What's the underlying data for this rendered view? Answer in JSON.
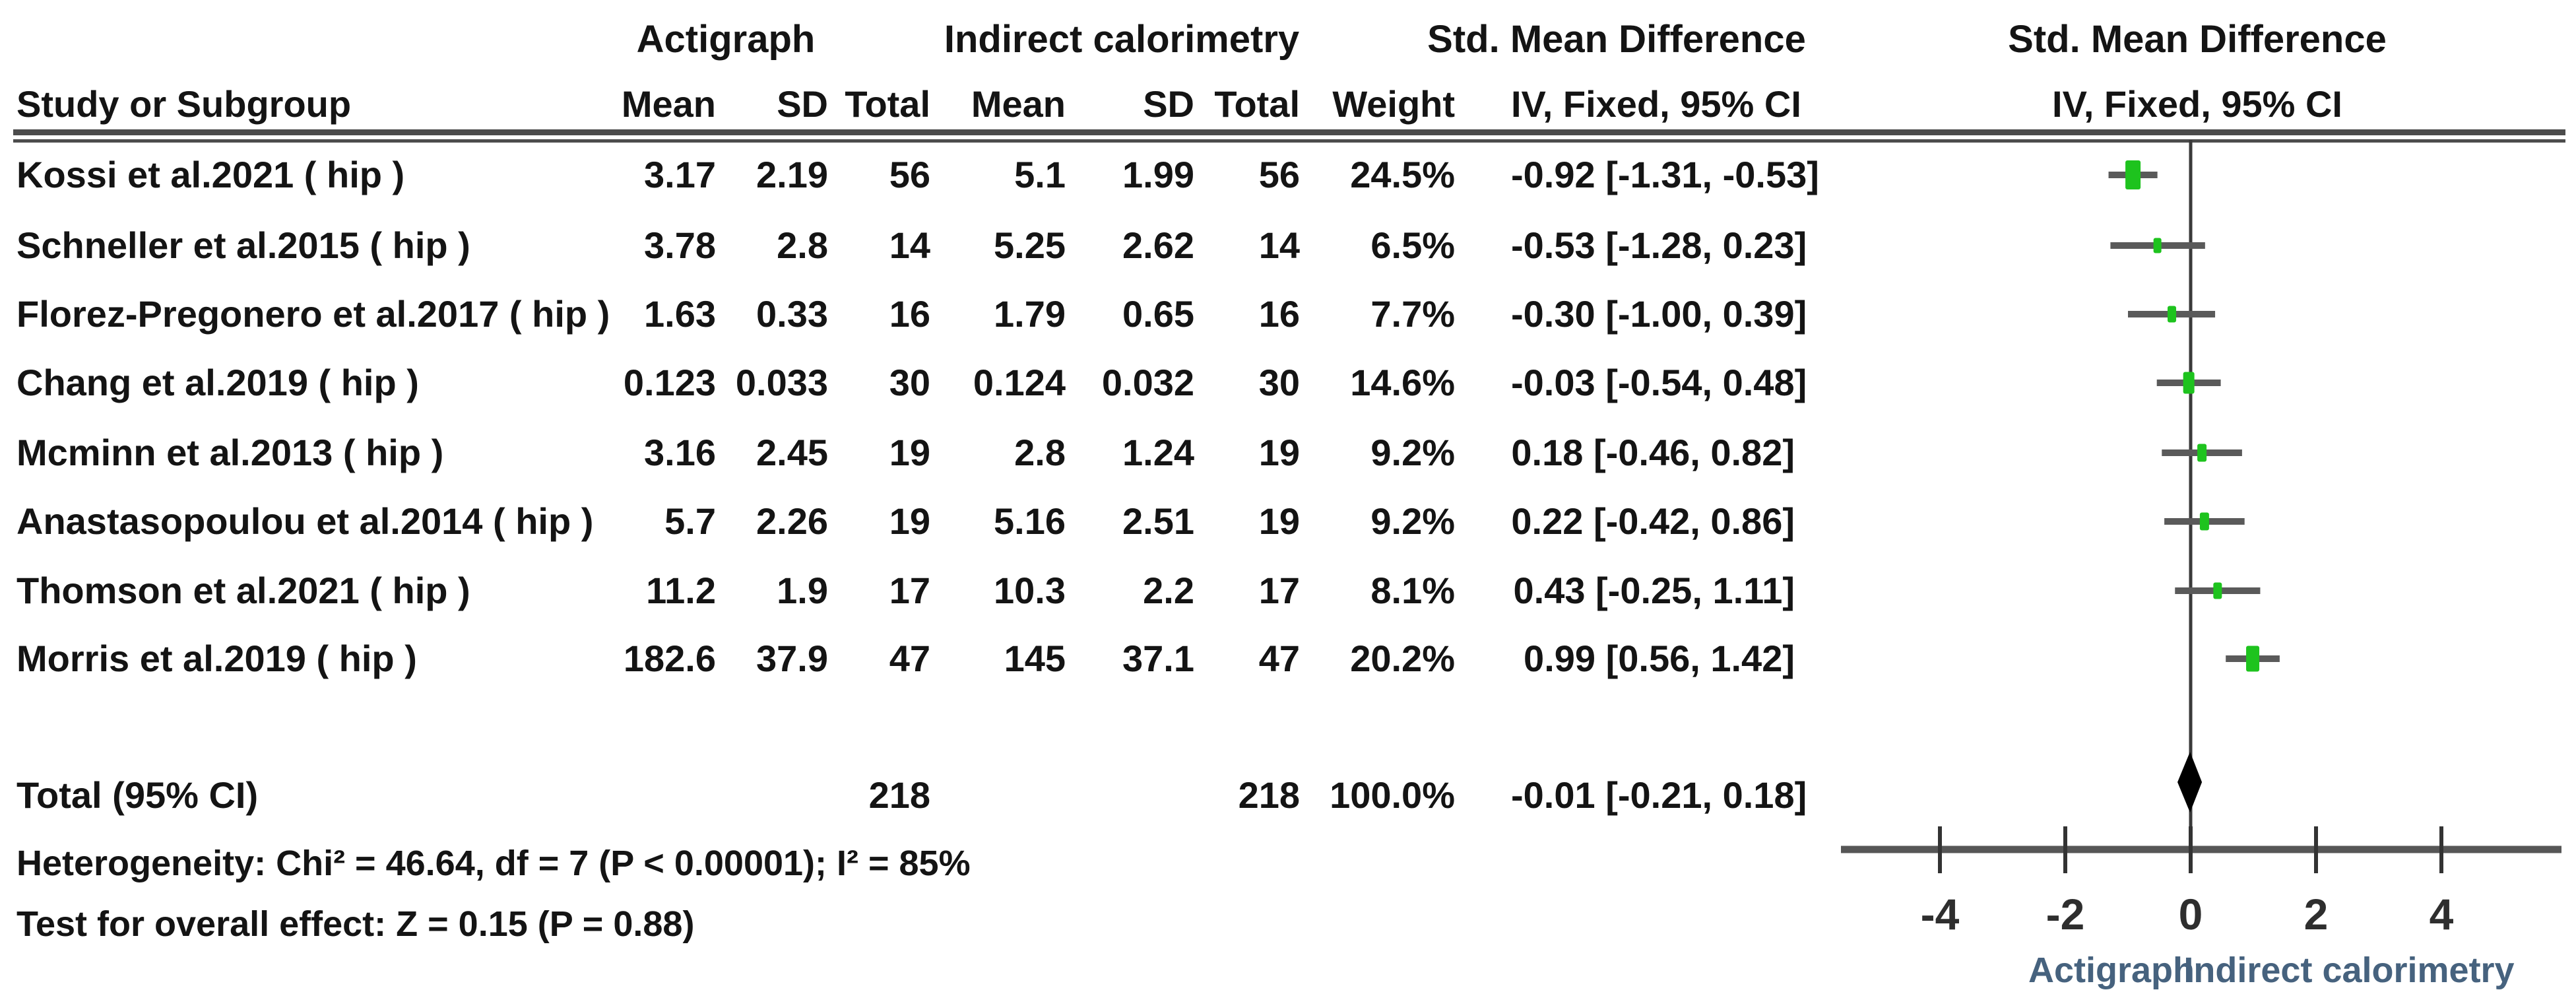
{
  "table": {
    "group_headers": {
      "experimental": "Actigraph",
      "control": "Indirect calorimetry",
      "smd_table": "Std. Mean Difference",
      "smd_plot": "Std. Mean Difference"
    },
    "column_headers": {
      "study": "Study or Subgroup",
      "mean": "Mean",
      "sd": "SD",
      "total": "Total",
      "weight": "Weight",
      "ci_table": "IV, Fixed, 95% CI",
      "ci_plot": "IV, Fixed, 95% CI"
    },
    "rows": [
      {
        "study": "Kossi et al.2021 ( hip )",
        "mean1": "3.17",
        "sd1": "2.19",
        "total1": "56",
        "mean2": "5.1",
        "sd2": "1.99",
        "total2": "56",
        "weight": "24.5%",
        "ci_text": "-0.92 [-1.31, -0.53]"
      },
      {
        "study": "Schneller et al.2015 ( hip )",
        "mean1": "3.78",
        "sd1": "2.8",
        "total1": "14",
        "mean2": "5.25",
        "sd2": "2.62",
        "total2": "14",
        "weight": "6.5%",
        "ci_text": "-0.53 [-1.28, 0.23]"
      },
      {
        "study": "Florez-Pregonero et al.2017 ( hip )",
        "mean1": "1.63",
        "sd1": "0.33",
        "total1": "16",
        "mean2": "1.79",
        "sd2": "0.65",
        "total2": "16",
        "weight": "7.7%",
        "ci_text": "-0.30 [-1.00, 0.39]"
      },
      {
        "study": "Chang et al.2019 ( hip )",
        "mean1": "0.123",
        "sd1": "0.033",
        "total1": "30",
        "mean2": "0.124",
        "sd2": "0.032",
        "total2": "30",
        "weight": "14.6%",
        "ci_text": "-0.03 [-0.54, 0.48]"
      },
      {
        "study": "Mcminn et al.2013 ( hip )",
        "mean1": "3.16",
        "sd1": "2.45",
        "total1": "19",
        "mean2": "2.8",
        "sd2": "1.24",
        "total2": "19",
        "weight": "9.2%",
        "ci_text": "0.18 [-0.46, 0.82]"
      },
      {
        "study": "Anastasopoulou et al.2014 ( hip )",
        "mean1": "5.7",
        "sd1": "2.26",
        "total1": "19",
        "mean2": "5.16",
        "sd2": "2.51",
        "total2": "19",
        "weight": "9.2%",
        "ci_text": "0.22 [-0.42, 0.86]"
      },
      {
        "study": "Thomson et al.2021 ( hip )",
        "mean1": "11.2",
        "sd1": "1.9",
        "total1": "17",
        "mean2": "10.3",
        "sd2": "2.2",
        "total2": "17",
        "weight": "8.1%",
        "ci_text": "0.43 [-0.25, 1.11]"
      },
      {
        "study": "Morris et al.2019 ( hip )",
        "mean1": "182.6",
        "sd1": "37.9",
        "total1": "47",
        "mean2": "145",
        "sd2": "37.1",
        "total2": "47",
        "weight": "20.2%",
        "ci_text": "0.99 [0.56, 1.42]"
      }
    ],
    "total_row": {
      "label": "Total (95% CI)",
      "total1": "218",
      "total2": "218",
      "weight": "100.0%",
      "ci_text": "-0.01 [-0.21, 0.18]"
    }
  },
  "footer": {
    "heterogeneity": "Heterogeneity: Chi² = 46.64, df = 7 (P < 0.00001); I² = 85%",
    "overall_effect": "Test for overall effect: Z = 0.15 (P = 0.88)"
  },
  "colors": {
    "marker_green": "#1ec31e",
    "ci_line": "#5a5a5a",
    "diamond": "#000000",
    "axis": "#565656",
    "zero_line": "#3a3a3a",
    "tick_label": "#2e2e2e",
    "caption_blue": "#46627e"
  },
  "chart_data": {
    "type": "forest",
    "effect_measure": "Std. Mean Difference",
    "model": "IV, Fixed, 95% CI",
    "studies": [
      {
        "name": "Kossi et al.2021 ( hip )",
        "est": -0.92,
        "lo": -1.31,
        "hi": -0.53,
        "weight": 24.5
      },
      {
        "name": "Schneller et al.2015 ( hip )",
        "est": -0.53,
        "lo": -1.28,
        "hi": 0.23,
        "weight": 6.5
      },
      {
        "name": "Florez-Pregonero et al.2017 ( hip )",
        "est": -0.3,
        "lo": -1.0,
        "hi": 0.39,
        "weight": 7.7
      },
      {
        "name": "Chang et al.2019 ( hip )",
        "est": -0.03,
        "lo": -0.54,
        "hi": 0.48,
        "weight": 14.6
      },
      {
        "name": "Mcminn et al.2013 ( hip )",
        "est": 0.18,
        "lo": -0.46,
        "hi": 0.82,
        "weight": 9.2
      },
      {
        "name": "Anastasopoulou et al.2014 ( hip )",
        "est": 0.22,
        "lo": -0.42,
        "hi": 0.86,
        "weight": 9.2
      },
      {
        "name": "Thomson et al.2021 ( hip )",
        "est": 0.43,
        "lo": -0.25,
        "hi": 1.11,
        "weight": 8.1
      },
      {
        "name": "Morris et al.2019 ( hip )",
        "est": 0.99,
        "lo": 0.56,
        "hi": 1.42,
        "weight": 20.2
      }
    ],
    "total": {
      "label": "Total (95% CI)",
      "est": -0.01,
      "lo": -0.21,
      "hi": 0.18,
      "weight": 100.0
    },
    "xticks": [
      -4,
      -2,
      0,
      2,
      4
    ],
    "xlim": [
      -5.6,
      5.9
    ],
    "favors_left": "Actigraph",
    "favors_right": "Indirect calorimetry",
    "grid": false,
    "legend": false
  }
}
